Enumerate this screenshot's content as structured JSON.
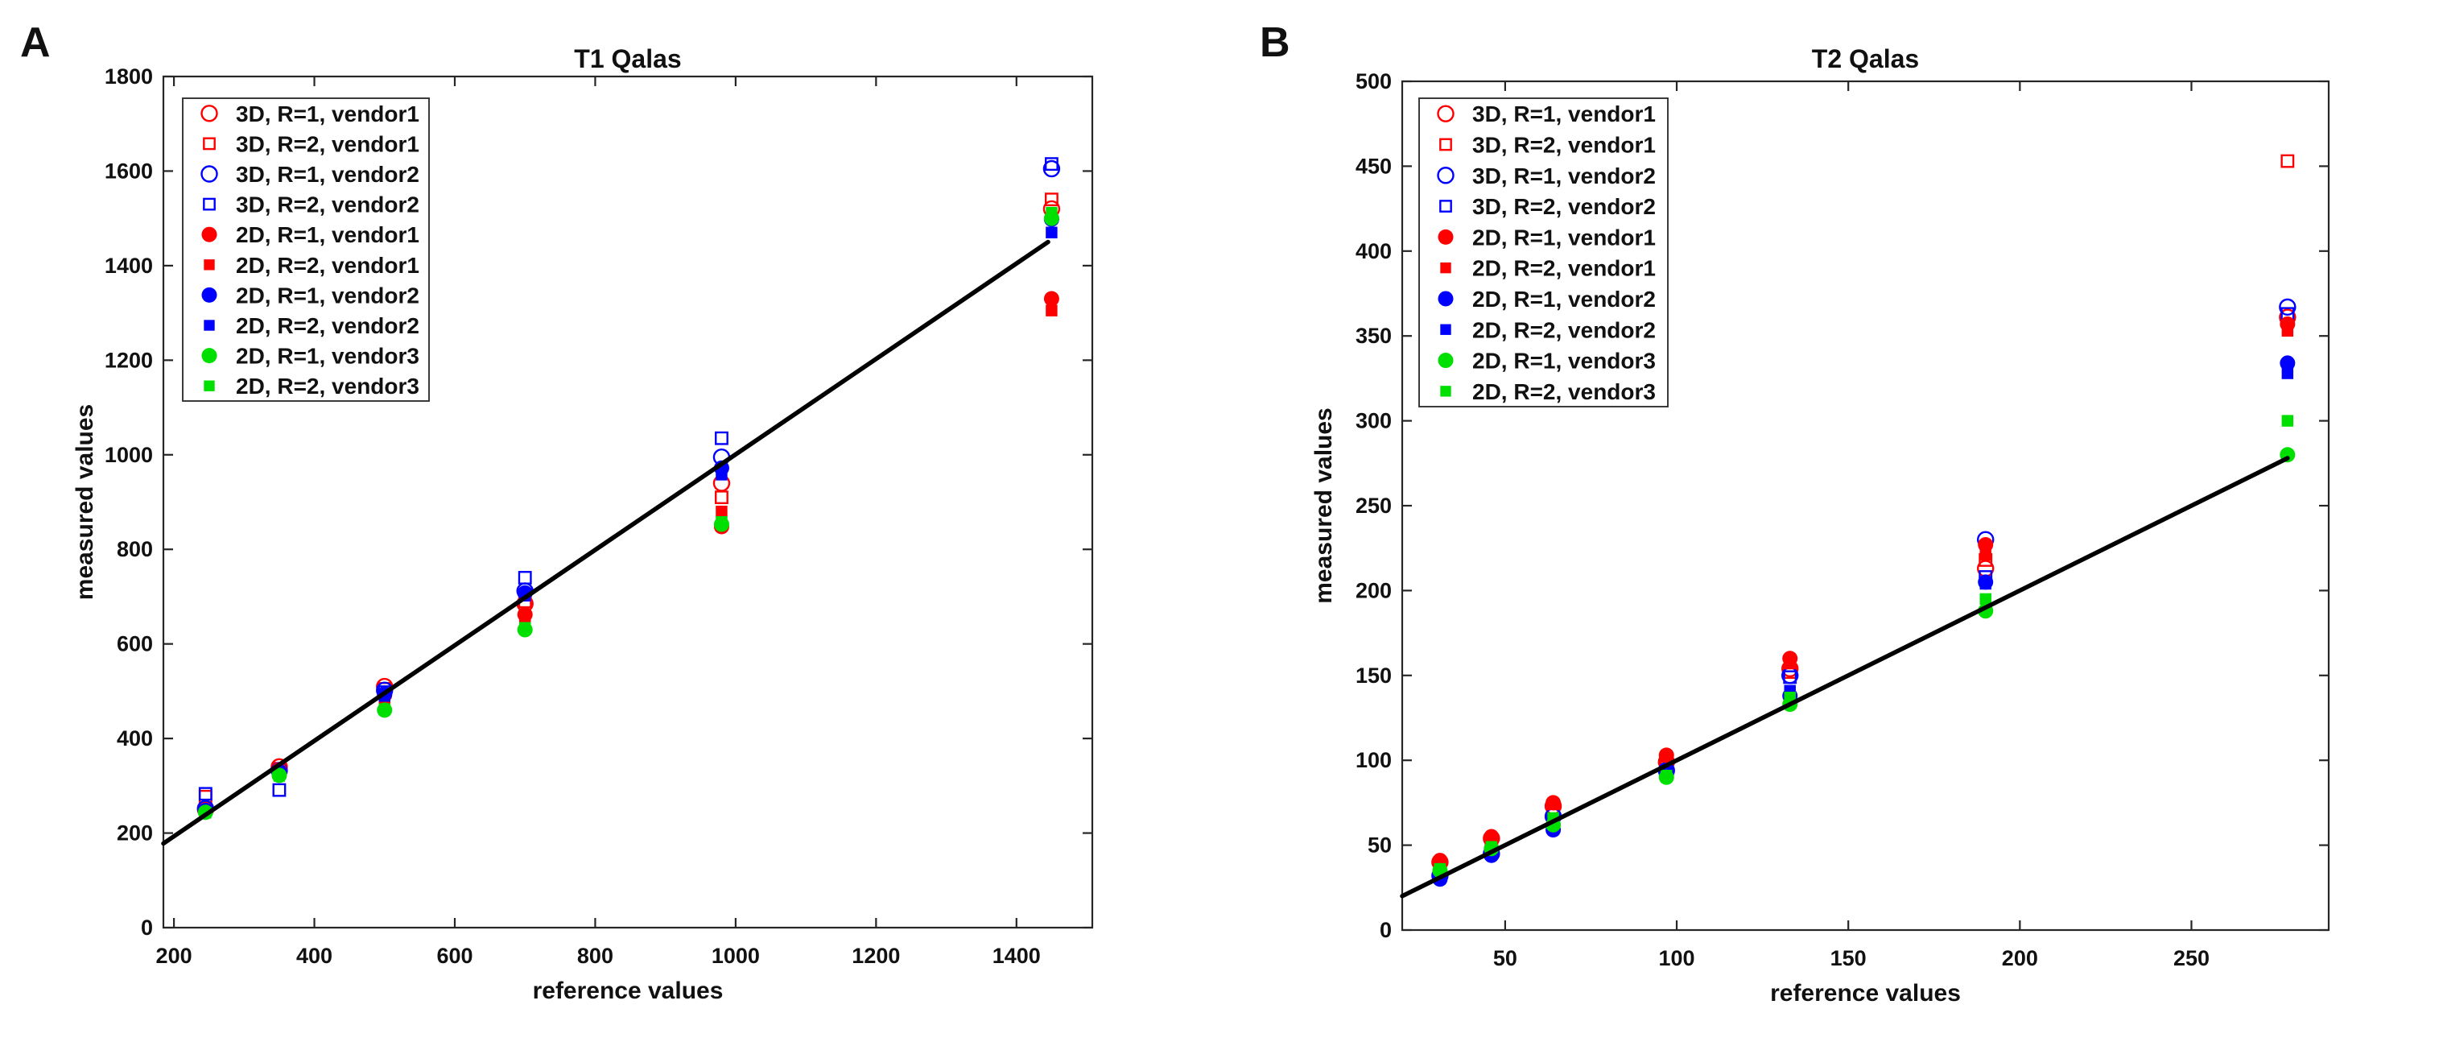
{
  "figure_background": "#FFFFFF",
  "axis_color": "#262626",
  "fit_line_color": "#000000",
  "chart_data": [
    {
      "type": "scatter",
      "panel_label": "A",
      "title": "T1 Qalas",
      "xlabel": "reference values",
      "ylabel": "measured values",
      "xlim": [
        185,
        1508
      ],
      "ylim": [
        0,
        1800
      ],
      "xticks": [
        200,
        400,
        600,
        800,
        1000,
        1200,
        1400
      ],
      "yticks": [
        0,
        200,
        400,
        600,
        800,
        1000,
        1200,
        1400,
        1600,
        1800
      ],
      "grid": false,
      "legend_position": "top-left",
      "x": [
        245,
        350,
        500,
        700,
        980,
        1450
      ],
      "series": [
        {
          "name": "3D, R=1, vendor1",
          "marker": "circle",
          "filled": false,
          "color": "#FF0000",
          "values": [
            250,
            340,
            510,
            685,
            940,
            1520
          ]
        },
        {
          "name": "3D, R=2, vendor1",
          "marker": "square",
          "filled": false,
          "color": "#FF0000",
          "values": [
            277,
            336,
            505,
            690,
            910,
            1540
          ]
        },
        {
          "name": "3D, R=1, vendor2",
          "marker": "circle",
          "filled": false,
          "color": "#0000FF",
          "values": [
            252,
            332,
            502,
            712,
            995,
            1605
          ]
        },
        {
          "name": "3D, R=2, vendor2",
          "marker": "square",
          "filled": false,
          "color": "#0000FF",
          "values": [
            283,
            291,
            498,
            740,
            1035,
            1615
          ]
        },
        {
          "name": "2D, R=1, vendor1",
          "marker": "circle",
          "filled": true,
          "color": "#FF0000",
          "values": [
            247,
            333,
            492,
            662,
            848,
            1330
          ]
        },
        {
          "name": "2D, R=2, vendor1",
          "marker": "square",
          "filled": true,
          "color": "#FF0000",
          "values": [
            246,
            331,
            476,
            656,
            880,
            1305
          ]
        },
        {
          "name": "2D, R=1, vendor2",
          "marker": "circle",
          "filled": true,
          "color": "#0000FF",
          "values": [
            248,
            330,
            494,
            708,
            972,
            1498
          ]
        },
        {
          "name": "2D, R=2, vendor2",
          "marker": "square",
          "filled": true,
          "color": "#0000FF",
          "values": [
            245,
            327,
            490,
            702,
            958,
            1470
          ]
        },
        {
          "name": "2D, R=1, vendor3",
          "marker": "circle",
          "filled": true,
          "color": "#00E000",
          "values": [
            244,
            322,
            460,
            630,
            853,
            1500
          ]
        },
        {
          "name": "2D, R=2, vendor3",
          "marker": "square",
          "filled": true,
          "color": "#00E000",
          "values": [
            243,
            321,
            462,
            634,
            858,
            1512
          ]
        }
      ],
      "fit_line": {
        "x": [
          185,
          1445
        ],
        "y": [
          178,
          1450
        ]
      }
    },
    {
      "type": "scatter",
      "panel_label": "B",
      "title": "T2 Qalas",
      "xlabel": "reference values",
      "ylabel": "measured values",
      "xlim": [
        20,
        290
      ],
      "ylim": [
        0,
        500
      ],
      "xticks": [
        50,
        100,
        150,
        200,
        250
      ],
      "yticks": [
        0,
        50,
        100,
        150,
        200,
        250,
        300,
        350,
        400,
        450,
        500
      ],
      "grid": false,
      "legend_position": "top-left",
      "x": [
        31,
        46,
        64,
        97,
        133,
        190,
        278
      ],
      "series": [
        {
          "name": "3D, R=1, vendor1",
          "marker": "circle",
          "filled": false,
          "color": "#FF0000",
          "values": [
            40,
            54,
            73,
            99,
            154,
            213,
            361
          ]
        },
        {
          "name": "3D, R=2, vendor1",
          "marker": "square",
          "filled": false,
          "color": "#FF0000",
          "values": [
            39,
            53,
            72,
            98,
            152,
            218,
            453
          ]
        },
        {
          "name": "3D, R=1, vendor2",
          "marker": "circle",
          "filled": false,
          "color": "#0000FF",
          "values": [
            32,
            45,
            67,
            94,
            150,
            230,
            367
          ]
        },
        {
          "name": "3D, R=2, vendor2",
          "marker": "square",
          "filled": false,
          "color": "#0000FF",
          "values": [
            33,
            46,
            65,
            93,
            149,
            208,
            363
          ]
        },
        {
          "name": "2D, R=1, vendor1",
          "marker": "circle",
          "filled": true,
          "color": "#FF0000",
          "values": [
            41,
            55,
            75,
            103,
            160,
            227,
            357
          ]
        },
        {
          "name": "2D, R=2, vendor1",
          "marker": "square",
          "filled": true,
          "color": "#FF0000",
          "values": [
            40,
            54,
            74,
            102,
            157,
            221,
            353
          ]
        },
        {
          "name": "2D, R=1, vendor2",
          "marker": "circle",
          "filled": true,
          "color": "#0000FF",
          "values": [
            30,
            44,
            59,
            92,
            138,
            205,
            334
          ]
        },
        {
          "name": "2D, R=2, vendor2",
          "marker": "square",
          "filled": true,
          "color": "#0000FF",
          "values": [
            31,
            45,
            61,
            93,
            141,
            204,
            328
          ]
        },
        {
          "name": "2D, R=1, vendor3",
          "marker": "circle",
          "filled": true,
          "color": "#00E000",
          "values": [
            35,
            48,
            62,
            90,
            133,
            188,
            280
          ]
        },
        {
          "name": "2D, R=2, vendor3",
          "marker": "square",
          "filled": true,
          "color": "#00E000",
          "values": [
            36,
            49,
            66,
            91,
            137,
            195,
            300
          ]
        }
      ],
      "fit_line": {
        "x": [
          20,
          278
        ],
        "y": [
          20,
          278
        ]
      }
    }
  ]
}
